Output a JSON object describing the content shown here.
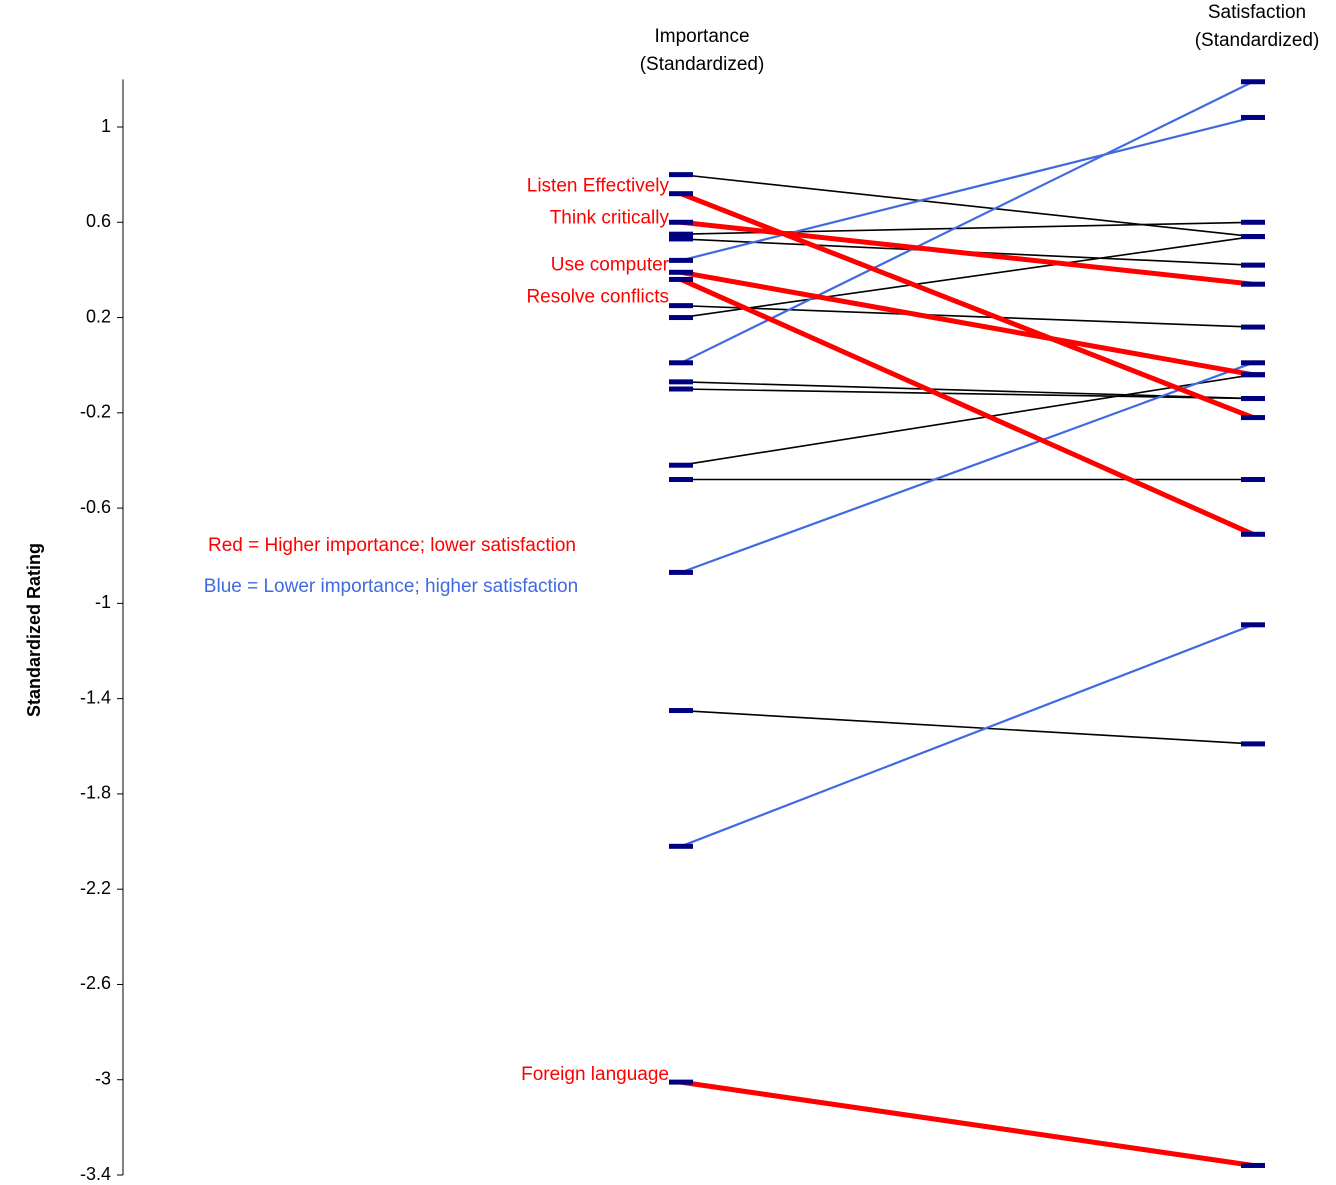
{
  "chart_data": {
    "type": "slope",
    "title": "",
    "ylabel": "Standardized Rating",
    "ylim": [
      -3.4,
      1.2
    ],
    "yticks": [
      "1",
      "0.6",
      "0.2",
      "-0.2",
      "-0.6",
      "-1",
      "-1.4",
      "-1.8",
      "-2.2",
      "-2.6",
      "-3",
      "-3.4"
    ],
    "ytick_values": [
      1,
      0.6,
      0.2,
      -0.2,
      -0.6,
      -1,
      -1.4,
      -1.8,
      -2.2,
      -2.6,
      -3,
      -3.4
    ],
    "columns": [
      {
        "line1": "Importance",
        "line2": "(Standardized)"
      },
      {
        "line1": "Satisfaction",
        "line2": "(Standardized)"
      }
    ],
    "colors": {
      "red": "#ff0000",
      "blue": "#4169e1",
      "black": "#000000",
      "marker": "#000080"
    },
    "series": [
      {
        "label": "Listen Effectively",
        "importance": 0.72,
        "satisfaction": -0.22,
        "color": "red"
      },
      {
        "label": "Think critically",
        "importance": 0.6,
        "satisfaction": 0.34,
        "color": "red"
      },
      {
        "label": "Use computer",
        "importance": 0.39,
        "satisfaction": -0.04,
        "color": "red"
      },
      {
        "label": "Resolve conflicts",
        "importance": 0.36,
        "satisfaction": -0.71,
        "color": "red"
      },
      {
        "label": "Foreign language",
        "importance": -3.01,
        "satisfaction": -3.36,
        "color": "red"
      },
      {
        "label": "",
        "importance": 0.44,
        "satisfaction": 1.04,
        "color": "blue"
      },
      {
        "label": "",
        "importance": 0.01,
        "satisfaction": 1.19,
        "color": "blue"
      },
      {
        "label": "",
        "importance": -0.87,
        "satisfaction": 0.01,
        "color": "blue"
      },
      {
        "label": "",
        "importance": -2.02,
        "satisfaction": -1.09,
        "color": "blue"
      },
      {
        "label": "",
        "importance": 0.8,
        "satisfaction": 0.54,
        "color": "black"
      },
      {
        "label": "",
        "importance": 0.55,
        "satisfaction": 0.6,
        "color": "black"
      },
      {
        "label": "",
        "importance": 0.53,
        "satisfaction": 0.42,
        "color": "black"
      },
      {
        "label": "",
        "importance": 0.2,
        "satisfaction": 0.54,
        "color": "black"
      },
      {
        "label": "",
        "importance": 0.25,
        "satisfaction": 0.16,
        "color": "black"
      },
      {
        "label": "",
        "importance": -0.07,
        "satisfaction": -0.14,
        "color": "black"
      },
      {
        "label": "",
        "importance": -0.1,
        "satisfaction": -0.14,
        "color": "black"
      },
      {
        "label": "",
        "importance": -0.42,
        "satisfaction": -0.04,
        "color": "black"
      },
      {
        "label": "",
        "importance": -0.48,
        "satisfaction": -0.48,
        "color": "black"
      },
      {
        "label": "",
        "importance": -1.45,
        "satisfaction": -1.59,
        "color": "black"
      }
    ],
    "legend": [
      {
        "text": "Red = Higher importance; lower satisfaction",
        "color": "red"
      },
      {
        "text": "Blue = Lower importance; higher satisfaction",
        "color": "blue"
      }
    ]
  }
}
